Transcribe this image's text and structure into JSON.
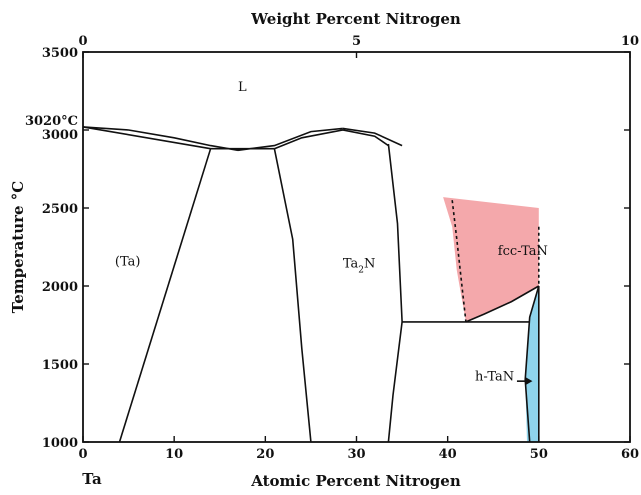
{
  "chart_data": {
    "type": "phase-diagram",
    "top_axis": {
      "title": "Weight Percent Nitrogen",
      "range": [
        0,
        10
      ],
      "ticks": [
        {
          "value": 0,
          "label": "0"
        },
        {
          "value": 5,
          "label": "5"
        },
        {
          "value": 10,
          "label": "10"
        }
      ]
    },
    "bottom_axis": {
      "title": "Atomic Percent Nitrogen",
      "range": [
        0,
        60
      ],
      "ticks": [
        {
          "value": 0,
          "label": "0"
        },
        {
          "value": 10,
          "label": "10"
        },
        {
          "value": 20,
          "label": "20"
        },
        {
          "value": 30,
          "label": "30"
        },
        {
          "value": 40,
          "label": "40"
        },
        {
          "value": 50,
          "label": "50"
        },
        {
          "value": 60,
          "label": "60"
        }
      ],
      "origin_label": "Ta"
    },
    "y_axis": {
      "title": "Temperature °C",
      "range": [
        1000,
        3500
      ],
      "ticks": [
        {
          "value": 1000,
          "label": "1000"
        },
        {
          "value": 1500,
          "label": "1500"
        },
        {
          "value": 2000,
          "label": "2000"
        },
        {
          "value": 2500,
          "label": "2500"
        },
        {
          "value": 3000,
          "label": "3000"
        },
        {
          "value": 3500,
          "label": "3500"
        }
      ],
      "marker": {
        "value": 3020,
        "label": "3020°C"
      }
    },
    "phase_labels": [
      {
        "text": "L",
        "x": 17,
        "y": 3250
      },
      {
        "text": "(Ta)",
        "x": 3.5,
        "y": 2130
      },
      {
        "text": "Ta",
        "sub": "2",
        "suffix": "N",
        "x": 28.5,
        "y": 2120
      },
      {
        "text": "fcc-TaN",
        "x": 45.5,
        "y": 2200
      },
      {
        "text": "h-TaN",
        "x": 43,
        "y": 1395
      }
    ],
    "highlight_colors": {
      "fcc_tan": "#f4a8ab",
      "h_tan": "#8fd4ec",
      "arrow": "#111111"
    },
    "boundaries": [
      {
        "name": "ta-liquidus",
        "points": [
          [
            0,
            3020
          ],
          [
            5,
            3000
          ],
          [
            10,
            2950
          ],
          [
            14,
            2900
          ],
          [
            17,
            2870
          ]
        ]
      },
      {
        "name": "ta-solidus",
        "points": [
          [
            0,
            3020
          ],
          [
            14,
            2880
          ]
        ]
      },
      {
        "name": "ta-solvus",
        "points": [
          [
            14,
            2880
          ],
          [
            4,
            1000
          ]
        ]
      },
      {
        "name": "eutectic-line",
        "points": [
          [
            14,
            2880
          ],
          [
            21,
            2880
          ]
        ]
      },
      {
        "name": "ta2n-liquidus-left",
        "points": [
          [
            17,
            2870
          ],
          [
            21,
            2900
          ],
          [
            25,
            2990
          ],
          [
            28.5,
            3010
          ]
        ]
      },
      {
        "name": "ta2n-liquidus-right",
        "points": [
          [
            28.5,
            3010
          ],
          [
            32,
            2980
          ],
          [
            35,
            2900
          ]
        ]
      },
      {
        "name": "ta2n-solidus",
        "points": [
          [
            21,
            2880
          ],
          [
            24,
            2950
          ],
          [
            28.5,
            3000
          ],
          [
            32,
            2960
          ],
          [
            33.5,
            2900
          ]
        ]
      },
      {
        "name": "ta2n-left-boundary",
        "points": [
          [
            21,
            2880
          ],
          [
            23,
            2300
          ],
          [
            24,
            1600
          ],
          [
            25,
            1000
          ]
        ]
      },
      {
        "name": "ta2n-right-boundary",
        "points": [
          [
            33.5,
            2910
          ],
          [
            34.5,
            2400
          ],
          [
            35,
            1770
          ],
          [
            34,
            1300
          ],
          [
            33.5,
            1000
          ]
        ]
      },
      {
        "name": "peritectoid-line",
        "points": [
          [
            35,
            1770
          ],
          [
            49,
            1770
          ]
        ]
      },
      {
        "name": "fcc-lower-boundary",
        "points": [
          [
            42,
            1770
          ],
          [
            44,
            1820
          ],
          [
            47,
            1900
          ],
          [
            50,
            2000
          ]
        ]
      },
      {
        "name": "htan-left-boundary",
        "points": [
          [
            50,
            2000
          ],
          [
            49,
            1800
          ],
          [
            48.5,
            1400
          ],
          [
            49,
            1000
          ]
        ]
      },
      {
        "name": "htan-right-boundary",
        "points": [
          [
            50,
            2000
          ],
          [
            50,
            1000
          ]
        ]
      }
    ],
    "dashed_boundaries": [
      {
        "name": "fcc-left-dashed",
        "points": [
          [
            40.5,
            2550
          ],
          [
            41,
            2300
          ],
          [
            42,
            1770
          ]
        ]
      },
      {
        "name": "fcc-right-dashed",
        "points": [
          [
            50,
            2380
          ],
          [
            50,
            2000
          ]
        ]
      }
    ],
    "regions": [
      {
        "name": "fcc-tan-region",
        "color_key": "fcc_tan",
        "points": [
          [
            39.5,
            2570
          ],
          [
            50,
            2500
          ],
          [
            50,
            2000
          ],
          [
            47,
            1900
          ],
          [
            44,
            1820
          ],
          [
            42,
            1770
          ],
          [
            41,
            2100
          ],
          [
            40.5,
            2380
          ]
        ]
      },
      {
        "name": "h-tan-region",
        "color_key": "h_tan",
        "points": [
          [
            50,
            2000
          ],
          [
            49,
            1800
          ],
          [
            48.5,
            1400
          ],
          [
            48.7,
            1000
          ],
          [
            50,
            1000
          ]
        ]
      }
    ]
  }
}
